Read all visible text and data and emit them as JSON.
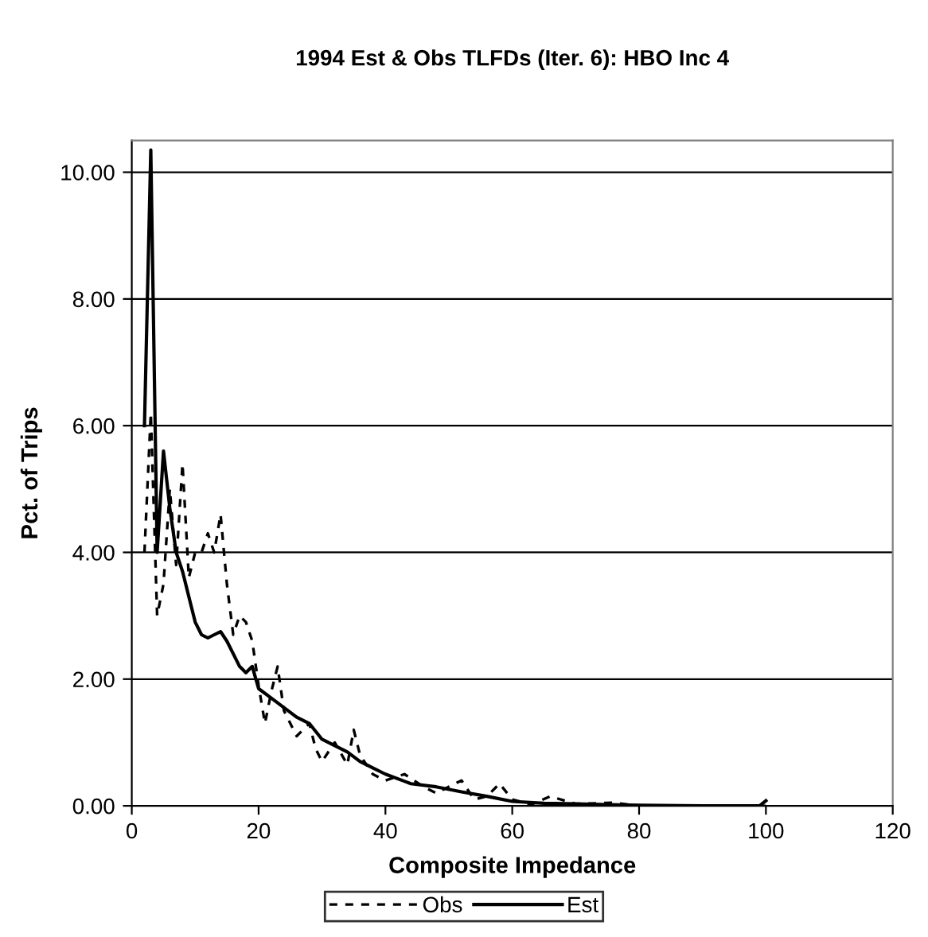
{
  "chart_data": {
    "type": "line",
    "title": "1994 Est & Obs TLFDs (Iter. 6): HBO Inc 4",
    "xlabel": "Composite Impedance",
    "ylabel": "Pct. of Trips",
    "xlim": [
      0,
      120
    ],
    "xticks": [
      0,
      20,
      40,
      60,
      80,
      100,
      120
    ],
    "ylim": [
      0,
      10.5
    ],
    "yticks": [
      {
        "value": 0,
        "label": "0.00"
      },
      {
        "value": 2,
        "label": "2.00"
      },
      {
        "value": 4,
        "label": "4.00"
      },
      {
        "value": 6,
        "label": "6.00"
      },
      {
        "value": 8,
        "label": "8.00"
      },
      {
        "value": 10,
        "label": "10.00"
      }
    ],
    "grid": "y",
    "legend": "bottom",
    "marker": "none",
    "series": [
      {
        "name": "Obs",
        "color": "#000000",
        "line_style": "dashed",
        "x": [
          2,
          3,
          4,
          5,
          6,
          7,
          8,
          9,
          10,
          11,
          12,
          13,
          14,
          15,
          16,
          17,
          18,
          19,
          20,
          21,
          22,
          23,
          24,
          26,
          28,
          29,
          30,
          32,
          34,
          35,
          36,
          38,
          40,
          43,
          46,
          48,
          52,
          54,
          56,
          58,
          60,
          63,
          66,
          70,
          76,
          80,
          90,
          100
        ],
        "values": [
          4.0,
          6.2,
          3.0,
          3.5,
          5.0,
          3.8,
          5.4,
          3.6,
          4.0,
          4.0,
          4.3,
          4.0,
          4.6,
          3.5,
          2.7,
          3.0,
          2.9,
          2.6,
          1.9,
          1.3,
          1.8,
          2.2,
          1.5,
          1.1,
          1.3,
          0.9,
          0.7,
          1.0,
          0.65,
          1.2,
          0.8,
          0.5,
          0.4,
          0.5,
          0.3,
          0.2,
          0.4,
          0.1,
          0.15,
          0.35,
          0.1,
          0.02,
          0.15,
          0.03,
          0.05,
          0.0,
          0.0,
          0.0
        ]
      },
      {
        "name": "Est",
        "color": "#000000",
        "line_style": "solid",
        "x": [
          2,
          3,
          4,
          5,
          6,
          7,
          8,
          9,
          10,
          11,
          12,
          13,
          14,
          15,
          16,
          17,
          18,
          19,
          20,
          22,
          24,
          26,
          28,
          30,
          32,
          34,
          36,
          38,
          40,
          44,
          48,
          52,
          56,
          60,
          65,
          70,
          80,
          90,
          99,
          100
        ],
        "values": [
          6.0,
          10.35,
          4.0,
          5.6,
          4.7,
          4.0,
          3.7,
          3.3,
          2.9,
          2.7,
          2.65,
          2.7,
          2.75,
          2.6,
          2.4,
          2.2,
          2.1,
          2.2,
          1.85,
          1.7,
          1.55,
          1.4,
          1.3,
          1.05,
          0.95,
          0.85,
          0.7,
          0.6,
          0.5,
          0.35,
          0.3,
          0.22,
          0.15,
          0.07,
          0.04,
          0.03,
          0.01,
          0.0,
          0.0,
          0.08
        ]
      }
    ]
  }
}
